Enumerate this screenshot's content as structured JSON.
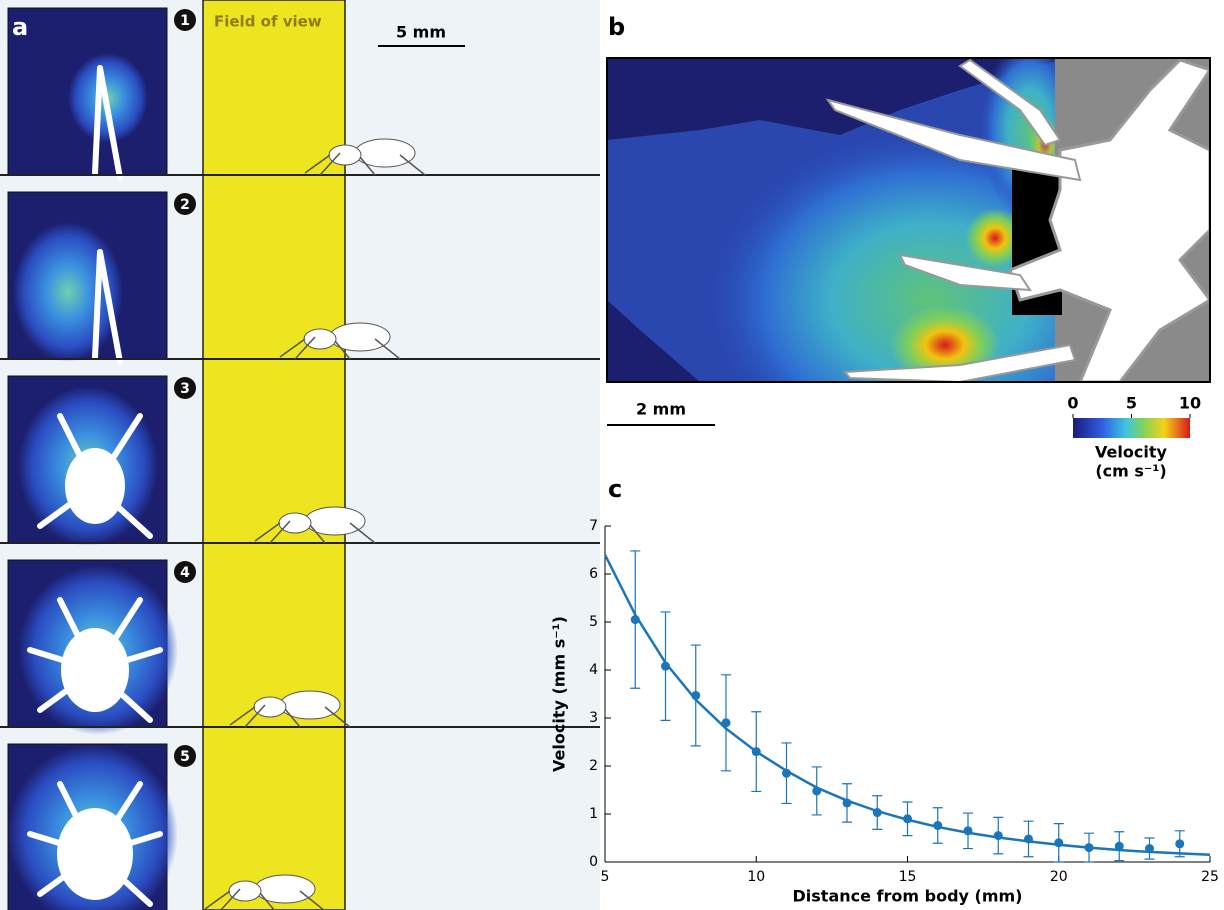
{
  "figure": {
    "panel_a": {
      "label": "a",
      "frames": [
        "1",
        "2",
        "3",
        "4",
        "5"
      ],
      "field_label": "Field of view",
      "scale_bar": "5 mm"
    },
    "panel_b": {
      "label": "b",
      "scale_bar": "2 mm",
      "colorbar": {
        "title": "Velocity",
        "unit": "(cm s⁻¹)",
        "lim": [
          0,
          10
        ],
        "ticks": [
          0,
          5,
          10
        ]
      }
    },
    "panel_c": {
      "label": "c"
    }
  },
  "chart_data": {
    "type": "line",
    "xlabel": "Distance from body (mm)",
    "ylabel": "Velocity (mm s⁻¹)",
    "xlim": [
      5,
      25
    ],
    "ylim": [
      0,
      7
    ],
    "xticks": [
      5,
      10,
      15,
      20,
      25
    ],
    "yticks": [
      0,
      1,
      2,
      3,
      4,
      5,
      6,
      7
    ],
    "series": [
      {
        "kind": "errorbar",
        "color": "#1b75bb",
        "x": [
          6,
          7,
          8,
          9,
          10,
          11,
          12,
          13,
          14,
          15,
          16,
          17,
          18,
          19,
          20,
          21,
          22,
          23,
          24
        ],
        "values": [
          5.05,
          4.08,
          3.47,
          2.9,
          2.3,
          1.85,
          1.48,
          1.23,
          1.03,
          0.9,
          0.76,
          0.65,
          0.55,
          0.48,
          0.4,
          0.3,
          0.33,
          0.28,
          0.38
        ],
        "errors": [
          1.43,
          1.13,
          1.05,
          1.0,
          0.83,
          0.63,
          0.5,
          0.4,
          0.35,
          0.35,
          0.37,
          0.37,
          0.38,
          0.37,
          0.4,
          0.3,
          0.3,
          0.22,
          0.27
        ]
      },
      {
        "kind": "line",
        "color": "#1b75bb",
        "x": [
          5,
          6,
          7,
          8,
          9,
          10,
          11,
          12,
          13,
          14,
          15,
          16,
          17,
          18,
          19,
          20,
          21,
          22,
          23,
          24,
          25
        ],
        "values": [
          6.4,
          5.15,
          4.15,
          3.38,
          2.78,
          2.3,
          1.9,
          1.55,
          1.28,
          1.06,
          0.88,
          0.73,
          0.61,
          0.51,
          0.43,
          0.36,
          0.3,
          0.25,
          0.21,
          0.18,
          0.15
        ]
      }
    ]
  }
}
